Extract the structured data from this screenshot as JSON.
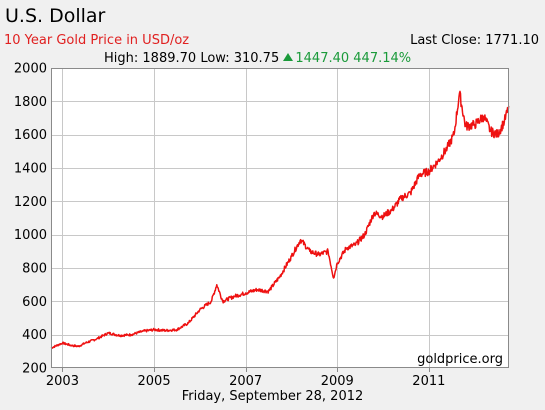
{
  "header": {
    "currency": "U.S. Dollar",
    "subtitle": "10 Year Gold Price in USD/oz",
    "last_close_label": "Last Close:",
    "last_close_value": "1771.10",
    "high_label": "High:",
    "high_value": "1889.70",
    "low_label": "Low:",
    "low_value": "310.75",
    "change_value": "1447.40",
    "change_pct": "447.14%",
    "change_direction": "up"
  },
  "footer": {
    "date": "Friday, September 28, 2012"
  },
  "colors": {
    "line": "#ee1111",
    "grid": "#c8c8c8",
    "plot_background": "#ffffff",
    "page_background": "#f0f0f0",
    "subtitle": "#e02020",
    "change_up": "#1a9a3a"
  },
  "chart_data": {
    "type": "line",
    "title": "10 Year Gold Price in USD/oz",
    "xlabel": "",
    "ylabel": "",
    "xlim": [
      2002.75,
      2012.75
    ],
    "ylim": [
      200,
      2000
    ],
    "grid": true,
    "legend": "none",
    "watermark": "goldprice.org",
    "x_ticks": [
      2003,
      2005,
      2007,
      2009,
      2011
    ],
    "x_tick_labels": [
      "2003",
      "2005",
      "2007",
      "2009",
      "2011"
    ],
    "y_ticks": [
      200,
      400,
      600,
      800,
      1000,
      1200,
      1400,
      1600,
      1800,
      2000
    ],
    "y_tick_labels": [
      "200",
      "400",
      "600",
      "800",
      "1000",
      "1200",
      "1400",
      "1600",
      "1800",
      "2000"
    ],
    "series": [
      {
        "x": [
          2002.75,
          2003.0,
          2003.2,
          2003.35,
          2003.5,
          2003.75,
          2004.0,
          2004.25,
          2004.5,
          2004.75,
          2005.0,
          2005.25,
          2005.5,
          2005.75,
          2006.0,
          2006.25,
          2006.37,
          2006.5,
          2006.75,
          2007.0,
          2007.25,
          2007.5,
          2007.75,
          2008.0,
          2008.2,
          2008.4,
          2008.6,
          2008.8,
          2008.92,
          2009.0,
          2009.2,
          2009.4,
          2009.6,
          2009.8,
          2010.0,
          2010.2,
          2010.4,
          2010.6,
          2010.8,
          2011.0,
          2011.2,
          2011.4,
          2011.55,
          2011.67,
          2011.8,
          2012.0,
          2012.2,
          2012.35,
          2012.5,
          2012.65,
          2012.75
        ],
        "y": [
          320,
          350,
          335,
          330,
          350,
          375,
          410,
          395,
          400,
          420,
          430,
          425,
          430,
          470,
          550,
          600,
          700,
          600,
          630,
          650,
          670,
          660,
          750,
          870,
          970,
          900,
          880,
          900,
          740,
          830,
          920,
          940,
          1000,
          1130,
          1110,
          1150,
          1220,
          1250,
          1360,
          1380,
          1440,
          1520,
          1600,
          1850,
          1650,
          1660,
          1710,
          1620,
          1600,
          1680,
          1771
        ]
      }
    ]
  }
}
